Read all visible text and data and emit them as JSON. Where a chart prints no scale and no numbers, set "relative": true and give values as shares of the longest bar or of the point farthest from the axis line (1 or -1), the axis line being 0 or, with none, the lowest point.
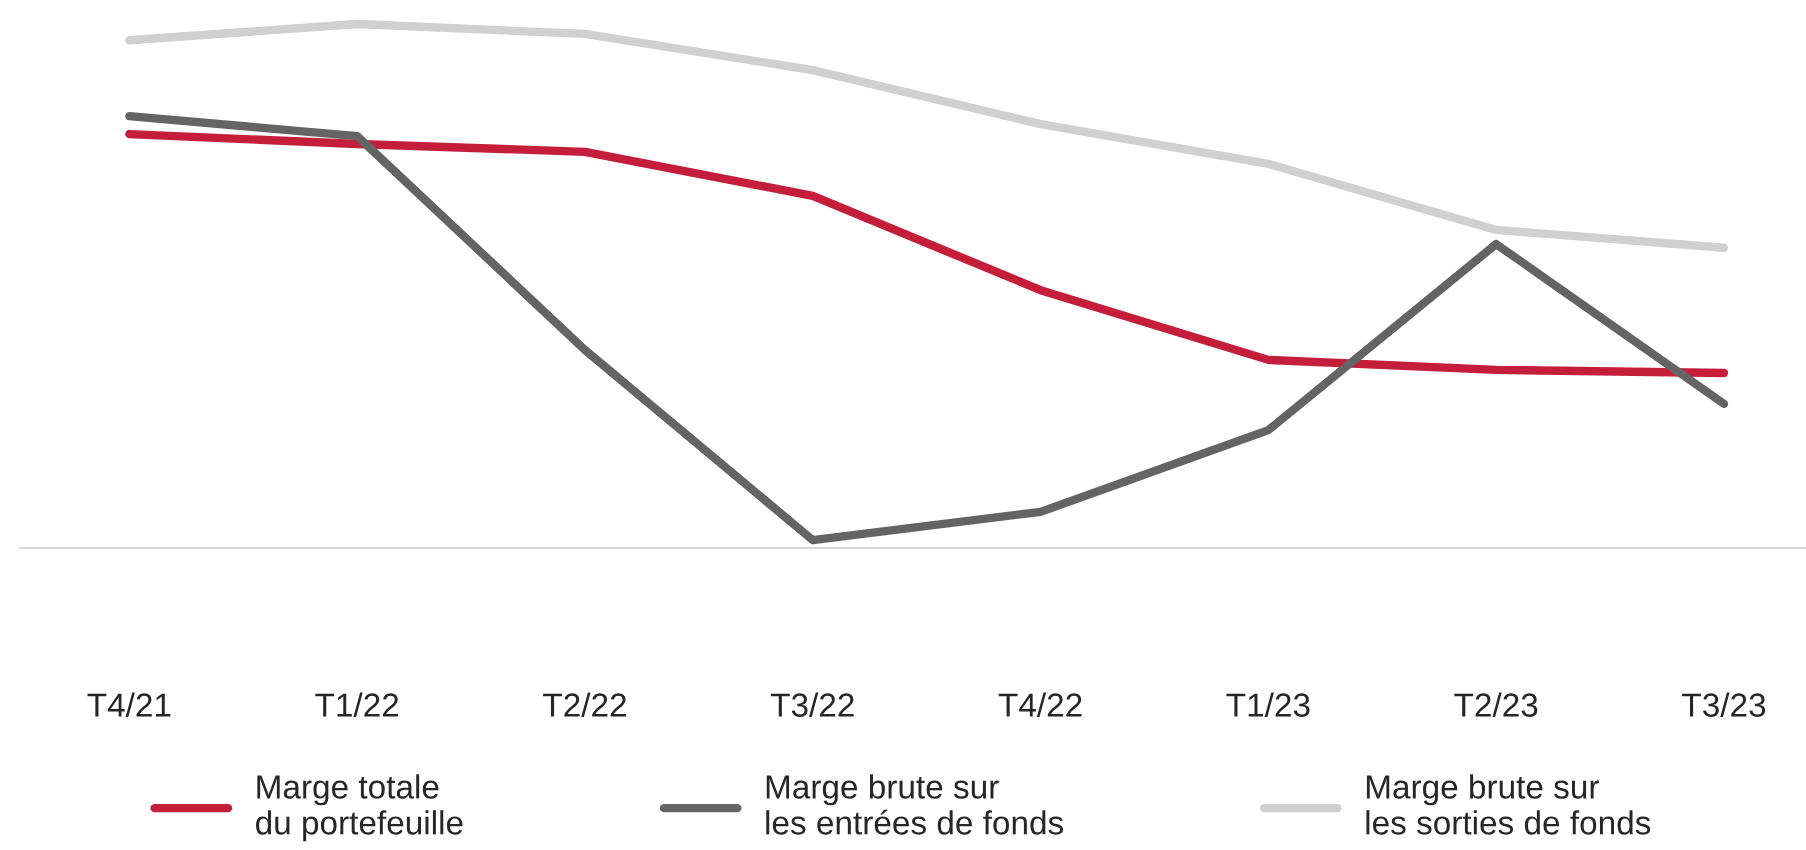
{
  "chart_data": {
    "type": "line",
    "relative": true,
    "categories": [
      "T4/21",
      "T1/22",
      "T2/22",
      "T3/22",
      "T4/22",
      "T1/23",
      "T2/23",
      "T3/23"
    ],
    "series": [
      {
        "name": "Marge totale\ndu portefeuille",
        "color": "#c41e3a",
        "values": [
          0.79,
          0.771,
          0.756,
          0.672,
          0.492,
          0.359,
          0.34,
          0.334
        ]
      },
      {
        "name": "Marge brute sur\nles entrées de fonds",
        "color": "#646464",
        "values": [
          0.824,
          0.786,
          0.378,
          0.015,
          0.069,
          0.225,
          0.58,
          0.275
        ]
      },
      {
        "name": "Marge brute sur\nles sorties de fonds",
        "color": "#d0d0d0",
        "values": [
          0.969,
          1,
          0.981,
          0.912,
          0.809,
          0.733,
          0.607,
          0.573
        ]
      }
    ],
    "legend": "bottom",
    "grid": false,
    "line_style": "solid",
    "marker": "none"
  }
}
